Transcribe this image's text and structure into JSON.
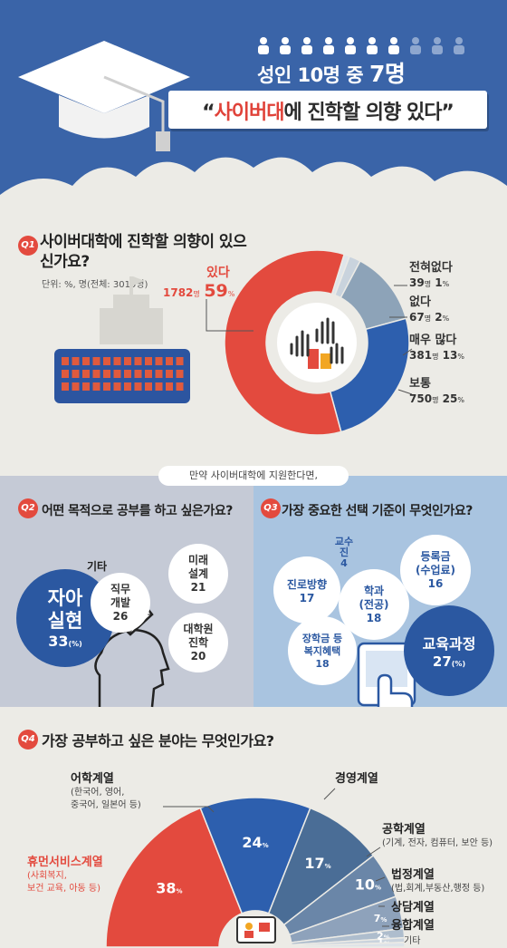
{
  "header": {
    "subtitle_prefix": "성인 10명 중 ",
    "subtitle_number": "7명",
    "title_quote_open": "“",
    "title_highlight": "사이버대",
    "title_rest": "에 진학할 의향 있다”",
    "colors": {
      "background": "#3a64a8",
      "accent_red": "#e0433a"
    }
  },
  "q1": {
    "badge": "Q1",
    "question": "사이버대학에 진학할 의향이 있으신가요?",
    "unit": "단위: %, 명(전체: 3019명)",
    "slices": [
      {
        "label": "있다",
        "count": "1782",
        "unit_count": "명",
        "percent": "59",
        "unit_pct": "%",
        "value": 59,
        "color": "#e34a3e"
      },
      {
        "label": "보통",
        "count": "750",
        "unit_count": "명",
        "percent": "25",
        "unit_pct": "%",
        "value": 25,
        "color": "#2d5fae"
      },
      {
        "label": "매우 많다",
        "count": "381",
        "unit_count": "명",
        "percent": "13",
        "unit_pct": "%",
        "value": 13,
        "color": "#8da3b8"
      },
      {
        "label": "없다",
        "count": "67",
        "unit_count": "명",
        "percent": "2",
        "unit_pct": "%",
        "value": 2,
        "color": "#c9d3dd"
      },
      {
        "label": "전혀없다",
        "count": "39",
        "unit_count": "명",
        "percent": "1",
        "unit_pct": "%",
        "value": 1,
        "color": "#dfe5ea"
      }
    ]
  },
  "connector": "만약 사이버대학에 지원한다면,",
  "q2": {
    "badge": "Q2",
    "question": "어떤 목적으로 공부를 하고 싶은가요?",
    "items": [
      {
        "label": "자아\n실현",
        "value": "33",
        "unit": "(%)"
      },
      {
        "label": "직무\n개발",
        "value": "26"
      },
      {
        "label": "미래\n설계",
        "value": "21"
      },
      {
        "label": "대학원\n진학",
        "value": "20"
      },
      {
        "label": "기타",
        "value": ""
      }
    ]
  },
  "q3": {
    "badge": "Q3",
    "question": "가장 중요한 선택 기준이 무엇인가요?",
    "items": [
      {
        "label": "교육과정",
        "value": "27",
        "unit": "(%)"
      },
      {
        "label": "학과\n(전공)",
        "value": "18"
      },
      {
        "label": "장학금 등\n복지혜택",
        "value": "18"
      },
      {
        "label": "진로방향",
        "value": "17"
      },
      {
        "label": "등록금\n(수업료)",
        "value": "16"
      },
      {
        "label": "교수진",
        "value": "4"
      }
    ]
  },
  "q4": {
    "badge": "Q4",
    "question": "가장 공부하고 싶은 분야는 무엇인가요?",
    "categories": [
      {
        "label": "휴먼서비스계열",
        "detail": "(사회복지,\n보건 교육, 아동 등)",
        "value": 38,
        "pct": "38",
        "color": "#e34a3e"
      },
      {
        "label": "어학계열",
        "detail": "(한국어, 영어,\n중국어, 일본어 등)",
        "value": 24,
        "pct": "24",
        "color": "#2d5fae"
      },
      {
        "label": "경영계열",
        "detail": "",
        "value": 17,
        "pct": "17",
        "color": "#4a6d96"
      },
      {
        "label": "공학계열",
        "detail": "(기계, 전자, 컴퓨터, 보안 등)",
        "value": 10,
        "pct": "10",
        "color": "#6a86a8"
      },
      {
        "label": "법정계열",
        "detail": "(법,회계,부동산,행정 등)",
        "value": 7,
        "pct": "7",
        "color": "#8ea2bb"
      },
      {
        "label": "상담계열",
        "detail": "",
        "value": 2,
        "pct": "2",
        "color": "#aebdcd"
      },
      {
        "label": "융합계열",
        "detail": "",
        "value": 1,
        "pct": "1",
        "color": "#c9d3dd"
      },
      {
        "label": "기타",
        "detail": "",
        "value": 1,
        "pct": "",
        "color": "#dde3e9"
      }
    ],
    "pct_unit": "%"
  }
}
